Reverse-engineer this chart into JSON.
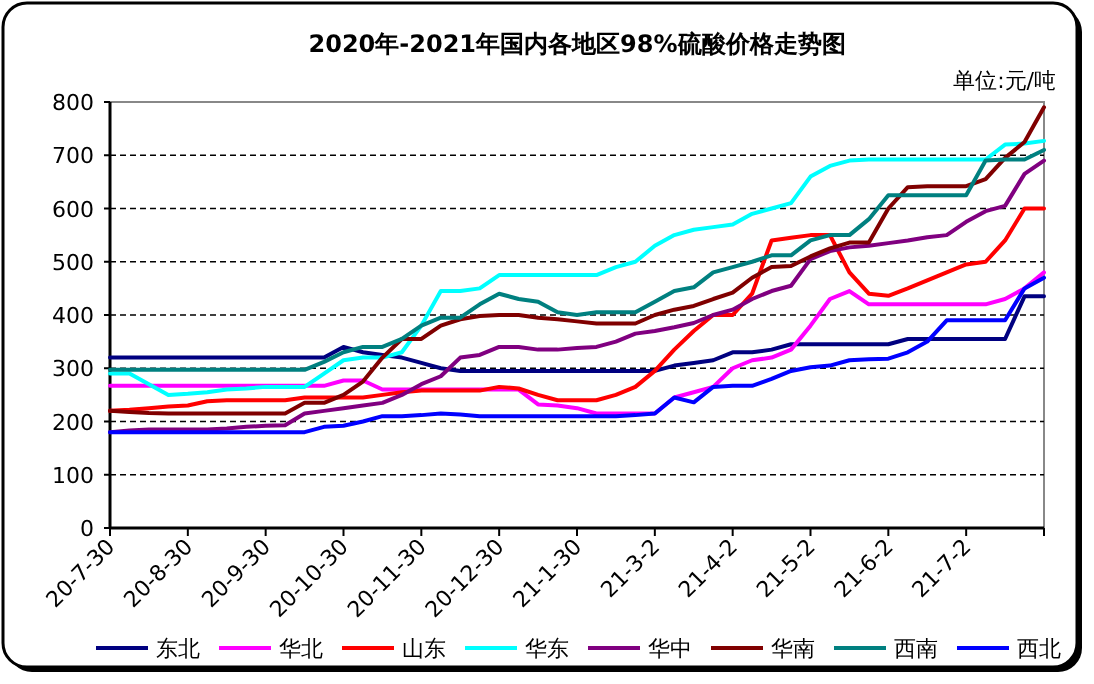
{
  "chart_data": {
    "type": "line",
    "title": "2020年-2021年国内各地区98%硫酸价格走势图",
    "annotations": [
      "单位:元/吨"
    ],
    "categories": [
      "20-7-30",
      null,
      null,
      null,
      "20-8-30",
      null,
      null,
      null,
      "20-9-30",
      null,
      null,
      null,
      "20-10-30",
      null,
      null,
      null,
      "20-11-30",
      null,
      null,
      null,
      "20-12-30",
      null,
      null,
      null,
      "21-1-30",
      null,
      null,
      null,
      "21-3-2",
      null,
      null,
      null,
      "21-4-2",
      null,
      null,
      null,
      "21-5-2",
      null,
      null,
      null,
      "21-6-2",
      null,
      null,
      null,
      "21-7-2",
      null,
      null,
      null,
      null
    ],
    "ylim": [
      0,
      800
    ],
    "yticks": [
      0,
      100,
      200,
      300,
      400,
      500,
      600,
      700,
      800
    ],
    "grid": "y",
    "legend": "bottom",
    "marker": "none",
    "line_style": "solid",
    "series": [
      {
        "name": "东北",
        "color": "#000080",
        "values": [
          320,
          320,
          320,
          320,
          320,
          320,
          320,
          320,
          320,
          320,
          320,
          320,
          340,
          330,
          325,
          320,
          310,
          300,
          295,
          295,
          295,
          295,
          295,
          295,
          295,
          295,
          295,
          295,
          295,
          305,
          310,
          315,
          330,
          330,
          335,
          345,
          345,
          345,
          345,
          345,
          345,
          355,
          355,
          355,
          355,
          355,
          355,
          435,
          435
        ]
      },
      {
        "name": "华北",
        "color": "#ff00ff",
        "values": [
          267,
          267,
          267,
          267,
          267,
          267,
          267,
          267,
          267,
          267,
          267,
          267,
          277,
          277,
          260,
          260,
          260,
          260,
          260,
          260,
          260,
          260,
          232,
          230,
          225,
          215,
          215,
          215,
          215,
          245,
          255,
          265,
          300,
          315,
          320,
          335,
          380,
          430,
          445,
          420,
          420,
          420,
          420,
          420,
          420,
          420,
          430,
          450,
          480
        ]
      },
      {
        "name": "山东",
        "color": "#ff0000",
        "values": [
          220,
          222,
          225,
          228,
          230,
          238,
          240,
          240,
          240,
          240,
          245,
          245,
          245,
          245,
          250,
          255,
          258,
          258,
          258,
          258,
          265,
          262,
          250,
          240,
          240,
          240,
          250,
          265,
          295,
          335,
          370,
          400,
          400,
          440,
          540,
          545,
          550,
          550,
          480,
          440,
          436,
          450,
          465,
          480,
          495,
          500,
          540,
          600,
          600
        ]
      },
      {
        "name": "华东",
        "color": "#00ffff",
        "values": [
          290,
          290,
          270,
          250,
          252,
          255,
          260,
          262,
          265,
          265,
          265,
          290,
          315,
          320,
          320,
          330,
          380,
          445,
          445,
          450,
          475,
          475,
          475,
          475,
          475,
          475,
          490,
          500,
          530,
          550,
          560,
          565,
          570,
          590,
          600,
          610,
          660,
          680,
          690,
          692,
          692,
          692,
          692,
          692,
          692,
          692,
          720,
          722,
          727
        ]
      },
      {
        "name": "华中",
        "color": "#800080",
        "values": [
          180,
          183,
          185,
          185,
          185,
          185,
          187,
          190,
          192,
          193,
          215,
          220,
          225,
          230,
          235,
          250,
          270,
          285,
          320,
          325,
          340,
          340,
          335,
          335,
          338,
          340,
          350,
          365,
          370,
          377,
          385,
          400,
          410,
          430,
          445,
          455,
          505,
          520,
          527,
          530,
          535,
          540,
          546,
          550,
          575,
          595,
          605,
          665,
          690
        ]
      },
      {
        "name": "华南",
        "color": "#800000",
        "values": [
          220,
          218,
          216,
          215,
          215,
          215,
          215,
          215,
          215,
          215,
          235,
          235,
          250,
          275,
          320,
          355,
          355,
          380,
          392,
          398,
          400,
          400,
          395,
          392,
          388,
          384,
          384,
          384,
          400,
          410,
          417,
          430,
          442,
          470,
          490,
          492,
          510,
          525,
          536,
          536,
          600,
          640,
          642,
          642,
          642,
          655,
          695,
          725,
          790
        ]
      },
      {
        "name": "西南",
        "color": "#008080",
        "values": [
          297,
          297,
          297,
          297,
          297,
          297,
          297,
          297,
          297,
          297,
          297,
          312,
          330,
          340,
          340,
          355,
          380,
          395,
          395,
          420,
          440,
          430,
          425,
          405,
          400,
          405,
          405,
          405,
          425,
          445,
          452,
          480,
          490,
          500,
          512,
          512,
          540,
          550,
          550,
          580,
          625,
          625,
          625,
          625,
          625,
          690,
          692,
          692,
          710
        ]
      },
      {
        "name": "西北",
        "color": "#0000ff",
        "values": [
          180,
          180,
          180,
          180,
          180,
          180,
          180,
          180,
          180,
          180,
          180,
          190,
          192,
          200,
          210,
          210,
          212,
          215,
          213,
          210,
          210,
          210,
          210,
          210,
          210,
          210,
          210,
          212,
          215,
          245,
          236,
          265,
          267,
          267,
          280,
          295,
          302,
          305,
          315,
          317,
          318,
          330,
          350,
          390,
          390,
          390,
          390,
          450,
          470
        ]
      }
    ]
  }
}
